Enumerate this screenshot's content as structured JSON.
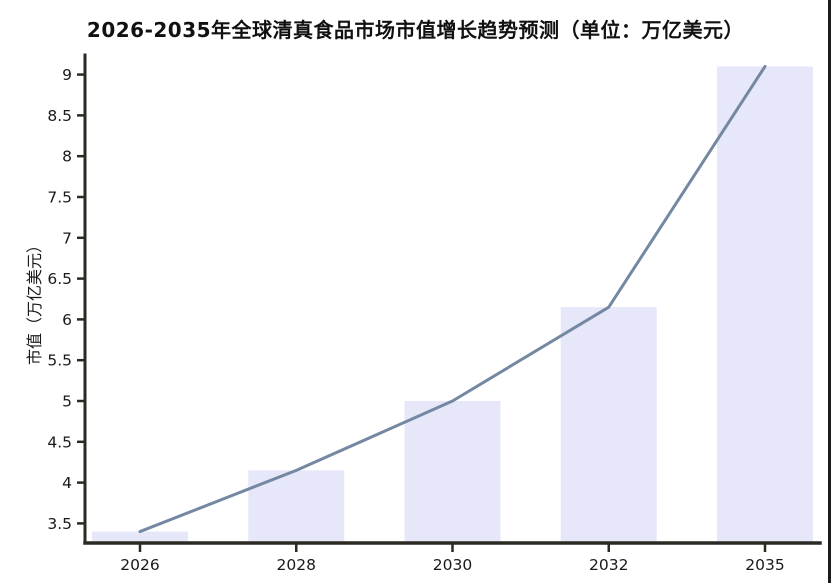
{
  "chart_data": {
    "type": "bar",
    "overlay": "line",
    "title": "2026-2035年全球清真食品市场市值增长趋势预测（单位：万亿美元）",
    "ylabel": "市值（万亿美元）",
    "xlabel": "",
    "categories": [
      "2026",
      "2028",
      "2030",
      "2032",
      "2035"
    ],
    "series": [
      {
        "type": "bar",
        "values": [
          3.4,
          4.15,
          5.0,
          6.15,
          9.1
        ]
      },
      {
        "type": "line",
        "values": [
          3.4,
          4.15,
          5.0,
          6.15,
          9.1
        ]
      }
    ],
    "ylim": [
      3.26,
      9.24
    ],
    "y_ticks": [
      9,
      8.5,
      8,
      7.5,
      7,
      6.5,
      6,
      5.5,
      5,
      4.5,
      4,
      3.5
    ],
    "grid": false,
    "legend": "none",
    "colors": {
      "bar": "#e7e7fa",
      "line": "#7588a1",
      "axis": "#2a2a22",
      "tick_text": "#1a1a1a",
      "title_text": "#111111",
      "page_edge": "#1c1c1c",
      "background": "#ffffff"
    }
  }
}
